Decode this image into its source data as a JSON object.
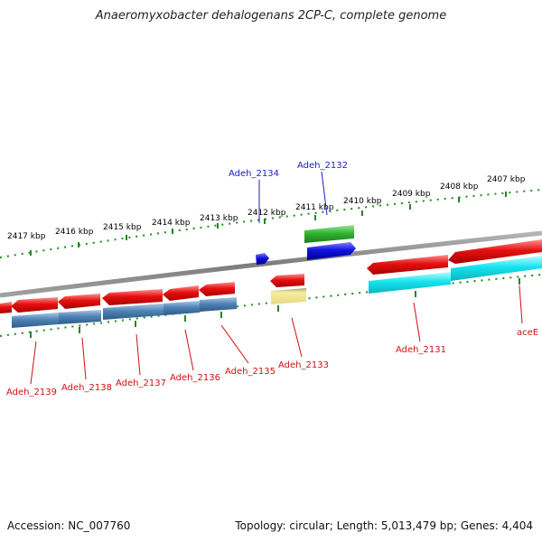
{
  "title": "Anaeromyxobacter dehalogenans 2CP-C, complete genome",
  "footer": {
    "accession": "Accession: NC_007760",
    "topology": "Topology: circular; Length: 5,013,479 bp; Genes: 4,404"
  },
  "colors": {
    "backbone": "#8a8a8a",
    "tick": "#1f8a1f",
    "forward_gene": "#2a9a2a",
    "forward_gene_alt": "#1010e0",
    "reverse_gene": "#e01010",
    "reverse_cds_steel": "#4f84b8",
    "reverse_cds_cyan": "#15e4ef",
    "reverse_cds_yellow": "#ecdf8a",
    "label_forward": "#1a1acc",
    "label_reverse": "#cc1111"
  },
  "kbp_labels": [
    "2417 kbp",
    "2416 kbp",
    "2415 kbp",
    "2414 kbp",
    "2413 kbp",
    "2412 kbp",
    "2411 kbp",
    "2410 kbp",
    "2409 kbp",
    "2408 kbp",
    "2407 kbp"
  ],
  "gene_labels": {
    "forward": [
      "Adeh_2134",
      "Adeh_2132"
    ],
    "reverse": [
      "Adeh_2139",
      "Adeh_2138",
      "Adeh_2137",
      "Adeh_2136",
      "Adeh_2135",
      "Adeh_2133",
      "Adeh_2131",
      "aceE"
    ]
  }
}
